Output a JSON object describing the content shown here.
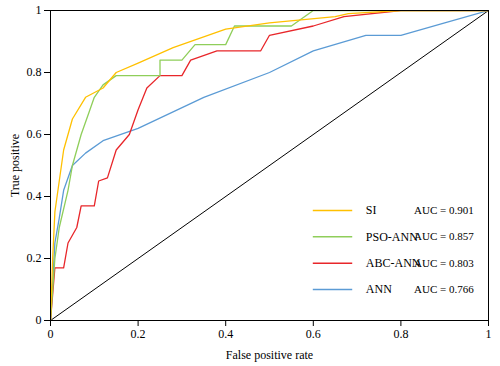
{
  "chart_data": {
    "type": "line",
    "x_label": "False positive rate",
    "y_label": "True positive",
    "xlim": [
      0,
      1
    ],
    "ylim": [
      0,
      1
    ],
    "xticks": [
      0,
      0.2,
      0.4,
      0.6,
      0.8,
      1
    ],
    "yticks": [
      0,
      0.2,
      0.4,
      0.6,
      0.8,
      1
    ],
    "grid": false,
    "legend": "lower right",
    "reference_line": {
      "x": [
        0,
        1
      ],
      "values": [
        0,
        1
      ],
      "color": "#000000"
    },
    "series": [
      {
        "name": "SI",
        "annotation": "AUC = 0.901",
        "color": "#ffc000",
        "x": [
          0,
          0.005,
          0.01,
          0.02,
          0.03,
          0.05,
          0.08,
          0.12,
          0.15,
          0.2,
          0.28,
          0.4,
          0.5,
          0.65,
          0.68,
          0.8,
          1
        ],
        "values": [
          0,
          0.2,
          0.35,
          0.45,
          0.55,
          0.65,
          0.72,
          0.75,
          0.8,
          0.83,
          0.88,
          0.94,
          0.96,
          0.98,
          0.99,
          1,
          1
        ]
      },
      {
        "name": "PSO-ANN",
        "annotation": "AUC = 0.857",
        "color": "#8fce5a",
        "x": [
          0,
          0.01,
          0.02,
          0.04,
          0.05,
          0.07,
          0.09,
          0.1,
          0.12,
          0.15,
          0.25,
          0.25,
          0.3,
          0.33,
          0.4,
          0.42,
          0.55,
          0.6,
          1
        ],
        "values": [
          0,
          0.2,
          0.3,
          0.42,
          0.5,
          0.6,
          0.68,
          0.72,
          0.76,
          0.79,
          0.79,
          0.84,
          0.84,
          0.89,
          0.89,
          0.95,
          0.95,
          1,
          1
        ]
      },
      {
        "name": "ABC-ANN",
        "annotation": "AUC = 0.803",
        "color": "#e8262a",
        "x": [
          0,
          0.01,
          0.03,
          0.04,
          0.06,
          0.07,
          0.1,
          0.11,
          0.13,
          0.15,
          0.18,
          0.2,
          0.22,
          0.25,
          0.3,
          0.32,
          0.38,
          0.48,
          0.5,
          0.6,
          0.67,
          0.8,
          1
        ],
        "values": [
          0,
          0.17,
          0.17,
          0.25,
          0.3,
          0.37,
          0.37,
          0.45,
          0.46,
          0.55,
          0.6,
          0.68,
          0.75,
          0.79,
          0.79,
          0.84,
          0.87,
          0.87,
          0.92,
          0.95,
          0.98,
          1,
          1
        ]
      },
      {
        "name": "ANN",
        "annotation": "AUC = 0.766",
        "color": "#5b9bd5",
        "x": [
          0,
          0.01,
          0.02,
          0.03,
          0.05,
          0.08,
          0.12,
          0.2,
          0.35,
          0.5,
          0.6,
          0.72,
          0.8,
          0.9,
          1
        ],
        "values": [
          0,
          0.25,
          0.33,
          0.42,
          0.5,
          0.54,
          0.58,
          0.62,
          0.72,
          0.8,
          0.87,
          0.92,
          0.92,
          0.96,
          1
        ]
      }
    ]
  }
}
